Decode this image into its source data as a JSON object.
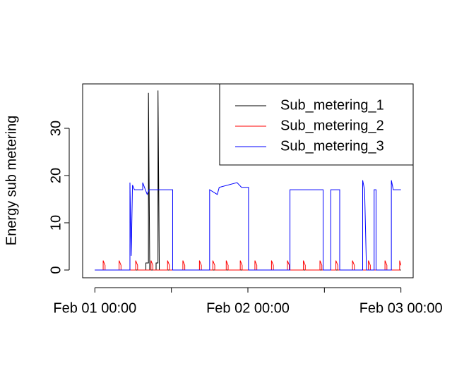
{
  "chart_data": {
    "type": "line",
    "ylabel": "Energy sub metering",
    "xlim": [
      -1.92,
      49.92
    ],
    "ylim": [
      -1.64,
      39.4
    ],
    "xticks": [
      {
        "value": 0,
        "label": "Feb 01 00:00"
      },
      {
        "value": 12,
        "label": null
      },
      {
        "value": 24,
        "label": "Feb 02 00:00"
      },
      {
        "value": 36,
        "label": null
      },
      {
        "value": 48,
        "label": "Feb 03 00:00"
      }
    ],
    "yticks": [
      0,
      10,
      20,
      30
    ],
    "legend": "topright",
    "series": [
      {
        "name": "Sub_metering_1",
        "color": "#000000",
        "x": [
          0,
          8.0,
          8.0,
          8.4,
          8.4,
          8.6,
          8.6,
          9.6,
          9.6,
          9.9,
          9.9,
          10.1,
          10.1,
          48
        ],
        "values": [
          0,
          0,
          1.5,
          1.5,
          37.5,
          1.5,
          0,
          0,
          1.5,
          1.5,
          38,
          1.5,
          0,
          0
        ]
      },
      {
        "name": "Sub_metering_2",
        "color": "#ff0000",
        "x": [
          0,
          1.3,
          1.3,
          1.6,
          1.6,
          3.8,
          3.8,
          4.1,
          4.1,
          6.4,
          6.4,
          6.7,
          6.7,
          8.8,
          8.8,
          9.1,
          9.1,
          11.4,
          11.4,
          11.7,
          11.7,
          13.8,
          13.8,
          14.1,
          14.1,
          16.4,
          16.4,
          16.7,
          16.7,
          18.5,
          18.5,
          18.8,
          18.8,
          20.6,
          20.6,
          20.9,
          20.9,
          22.8,
          22.8,
          23.1,
          23.1,
          25.1,
          25.1,
          25.4,
          25.4,
          27.7,
          27.7,
          28.0,
          28.0,
          30.2,
          30.2,
          30.5,
          30.5,
          32.7,
          32.7,
          33.0,
          33.0,
          35.3,
          35.3,
          35.6,
          35.6,
          37.8,
          37.8,
          38.1,
          38.1,
          40.4,
          40.4,
          40.7,
          40.7,
          42.9,
          42.9,
          43.2,
          43.2,
          45.5,
          45.5,
          45.8,
          45.8,
          47.8,
          47.8,
          48
        ],
        "values": [
          0,
          0,
          2,
          1,
          0,
          0,
          2,
          1,
          0,
          0,
          2,
          1,
          0,
          0,
          2,
          1,
          0,
          0,
          2,
          1,
          0,
          0,
          2,
          1,
          0,
          0,
          2,
          1,
          0,
          0,
          2,
          1,
          0,
          0,
          2,
          1,
          0,
          0,
          2,
          1,
          0,
          0,
          2,
          1,
          0,
          0,
          2,
          1,
          0,
          0,
          2,
          1,
          0,
          0,
          2,
          1,
          0,
          0,
          2,
          1,
          0,
          0,
          2,
          1,
          0,
          0,
          2,
          1,
          0,
          0,
          2,
          1,
          0,
          0,
          2,
          1,
          0,
          0,
          2,
          1
        ]
      },
      {
        "name": "Sub_metering_3",
        "color": "#0000ff",
        "x": [
          0,
          5.5,
          5.5,
          5.7,
          5.9,
          6.2,
          7.5,
          7.5,
          8.2,
          8.5,
          12.2,
          12.2,
          18,
          18,
          19.2,
          19.5,
          22.3,
          23,
          24.1,
          24.1,
          30.6,
          30.6,
          35.8,
          35.8,
          37,
          37,
          38.4,
          38.4,
          42,
          42,
          42.3,
          42.6,
          43.8,
          43.8,
          44.1,
          44.1,
          46.5,
          46.5,
          46.8,
          48
        ],
        "values": [
          0,
          0,
          18.5,
          3,
          18,
          17,
          17,
          18.5,
          16,
          17,
          17,
          0,
          0,
          17,
          16,
          17.5,
          18.5,
          17.5,
          17.5,
          0,
          0,
          17,
          17,
          0,
          0,
          17,
          17,
          0,
          0,
          19,
          17,
          0,
          0,
          17,
          17,
          0,
          0,
          19,
          17,
          17
        ]
      }
    ]
  }
}
